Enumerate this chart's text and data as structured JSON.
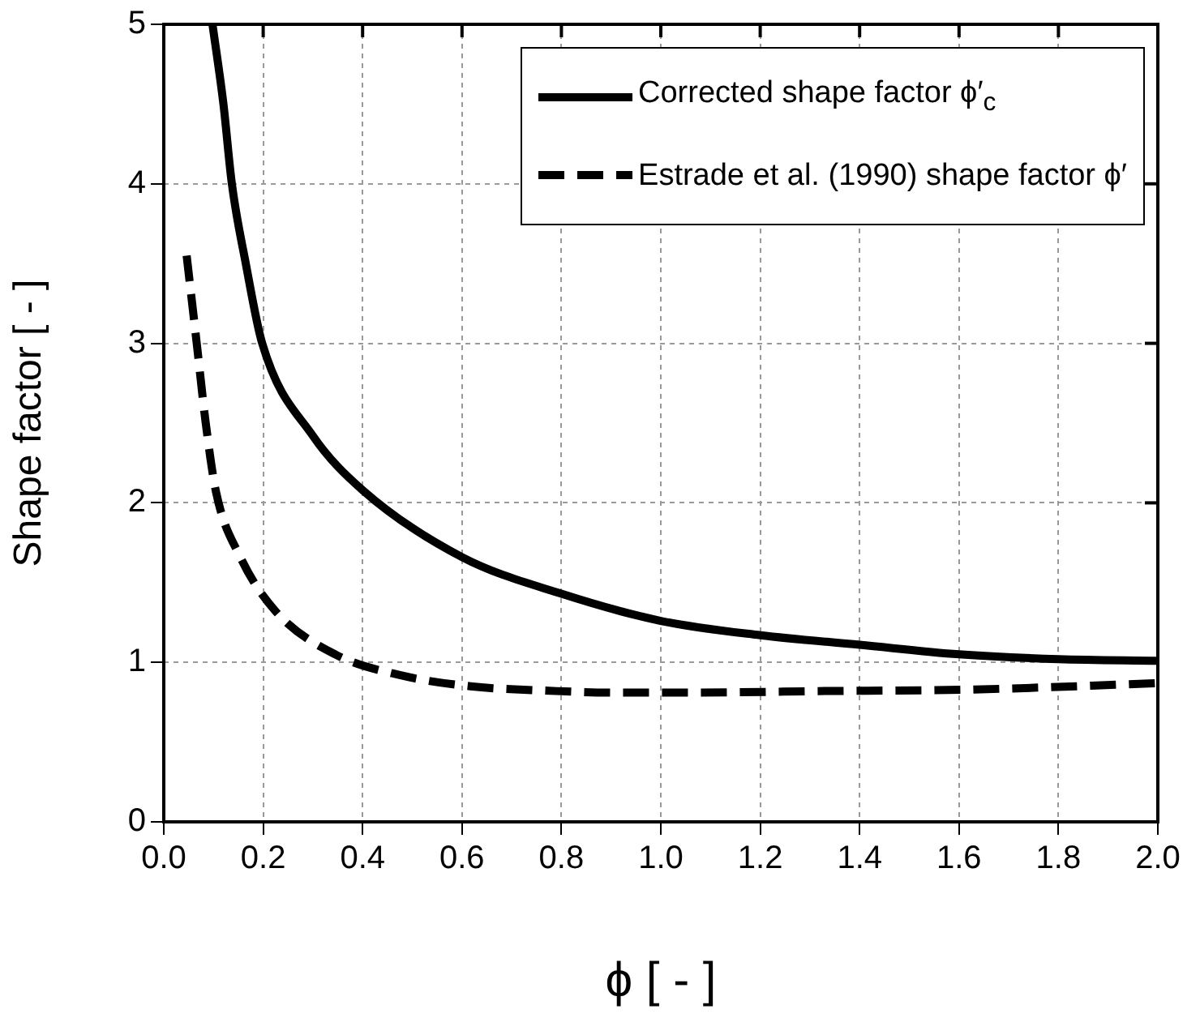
{
  "chart_data": {
    "type": "line",
    "xlabel": "ϕ [ - ]",
    "ylabel": "Shape factor [ - ]",
    "xlim": [
      0,
      2
    ],
    "ylim": [
      0,
      5
    ],
    "xticks": [
      {
        "value": 0,
        "label": "0.0"
      },
      {
        "value": 0.2,
        "label": "0.2"
      },
      {
        "value": 0.4,
        "label": "0.4"
      },
      {
        "value": 0.6,
        "label": "0.6"
      },
      {
        "value": 0.8,
        "label": "0.8"
      },
      {
        "value": 1,
        "label": "1.0"
      },
      {
        "value": 1.2,
        "label": "1.2"
      },
      {
        "value": 1.4,
        "label": "1.4"
      },
      {
        "value": 1.6,
        "label": "1.6"
      },
      {
        "value": 1.8,
        "label": "1.8"
      },
      {
        "value": 2,
        "label": "2.0"
      }
    ],
    "yticks": [
      0,
      1,
      2,
      3,
      4,
      5
    ],
    "grid": true,
    "legend": "top right",
    "marker": "none",
    "series": [
      {
        "name": "Corrected shape factor ϕ′$_{c}$",
        "color": "#000000",
        "line_style": "solid",
        "x": [
          0.098,
          0.12,
          0.137,
          0.165,
          0.198,
          0.3,
          0.4,
          0.6,
          0.8,
          1.0,
          1.2,
          1.4,
          1.6,
          1.8,
          2.0
        ],
        "values": [
          5,
          4.5,
          4,
          3.5,
          3,
          2.42,
          2.08,
          1.66,
          1.43,
          1.26,
          1.17,
          1.11,
          1.05,
          1.02,
          1.01
        ]
      },
      {
        "name": "Estrade et al. (1990) shape factor ϕ′",
        "color": "#000000",
        "line_style": "dashed",
        "x": [
          0.046,
          0.067,
          0.084,
          0.105,
          0.154,
          0.225,
          0.345,
          0.475,
          0.617,
          0.79,
          0.91,
          1.05,
          1.33,
          1.63,
          1.92,
          2.0
        ],
        "values": [
          3.55,
          2.98,
          2.51,
          2.07,
          1.66,
          1.32,
          1.05,
          0.92,
          0.85,
          0.82,
          0.81,
          0.81,
          0.82,
          0.83,
          0.86,
          0.87
        ]
      }
    ]
  }
}
